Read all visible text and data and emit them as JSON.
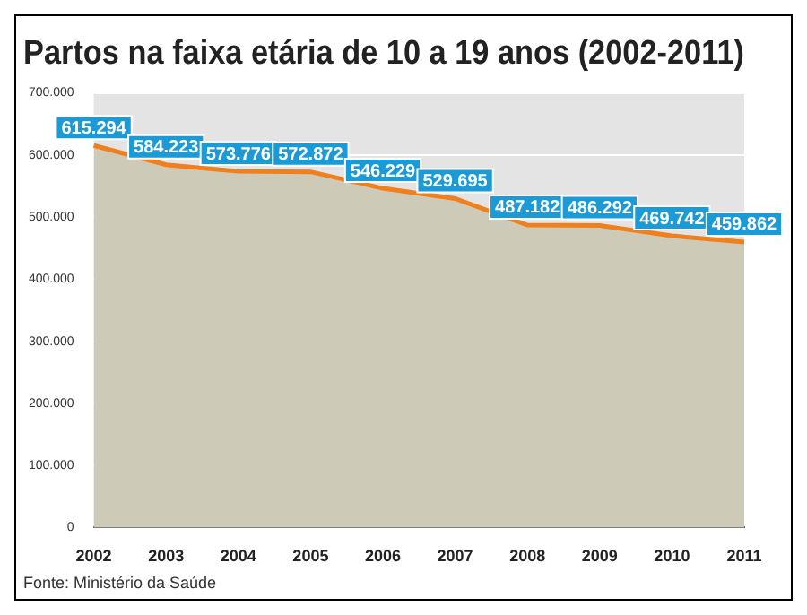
{
  "chart_data": {
    "type": "area",
    "title": "Partos na faixa etária de 10 a 19 anos (2002-2011)",
    "categories": [
      "2002",
      "2003",
      "2004",
      "2005",
      "2006",
      "2007",
      "2008",
      "2009",
      "2010",
      "2011"
    ],
    "series": [
      {
        "color": "#f07f1e",
        "values": [
          615294,
          584223,
          573776,
          572872,
          546229,
          529695,
          487182,
          486292,
          469742,
          459862
        ],
        "value_labels": [
          "615.294",
          "584.223",
          "573.776",
          "572.872",
          "546.229",
          "529.695",
          "487.182",
          "486.292",
          "469.742",
          "459.862"
        ]
      }
    ],
    "ylim": [
      0,
      700000
    ],
    "yticks": [
      0,
      {
        "value": 100000,
        "label": "100.000"
      },
      {
        "value": 200000,
        "label": "200.000"
      },
      {
        "value": 300000,
        "label": "300.000"
      },
      {
        "value": 400000,
        "label": "400.000"
      },
      {
        "value": 500000,
        "label": "500.000"
      },
      {
        "value": 600000,
        "label": "600.000"
      },
      {
        "value": 700000,
        "label": "700.000"
      }
    ],
    "grid": "y",
    "legend": false,
    "marker": "none",
    "annotations": [
      "Fonte: Ministério da Saúde"
    ]
  }
}
